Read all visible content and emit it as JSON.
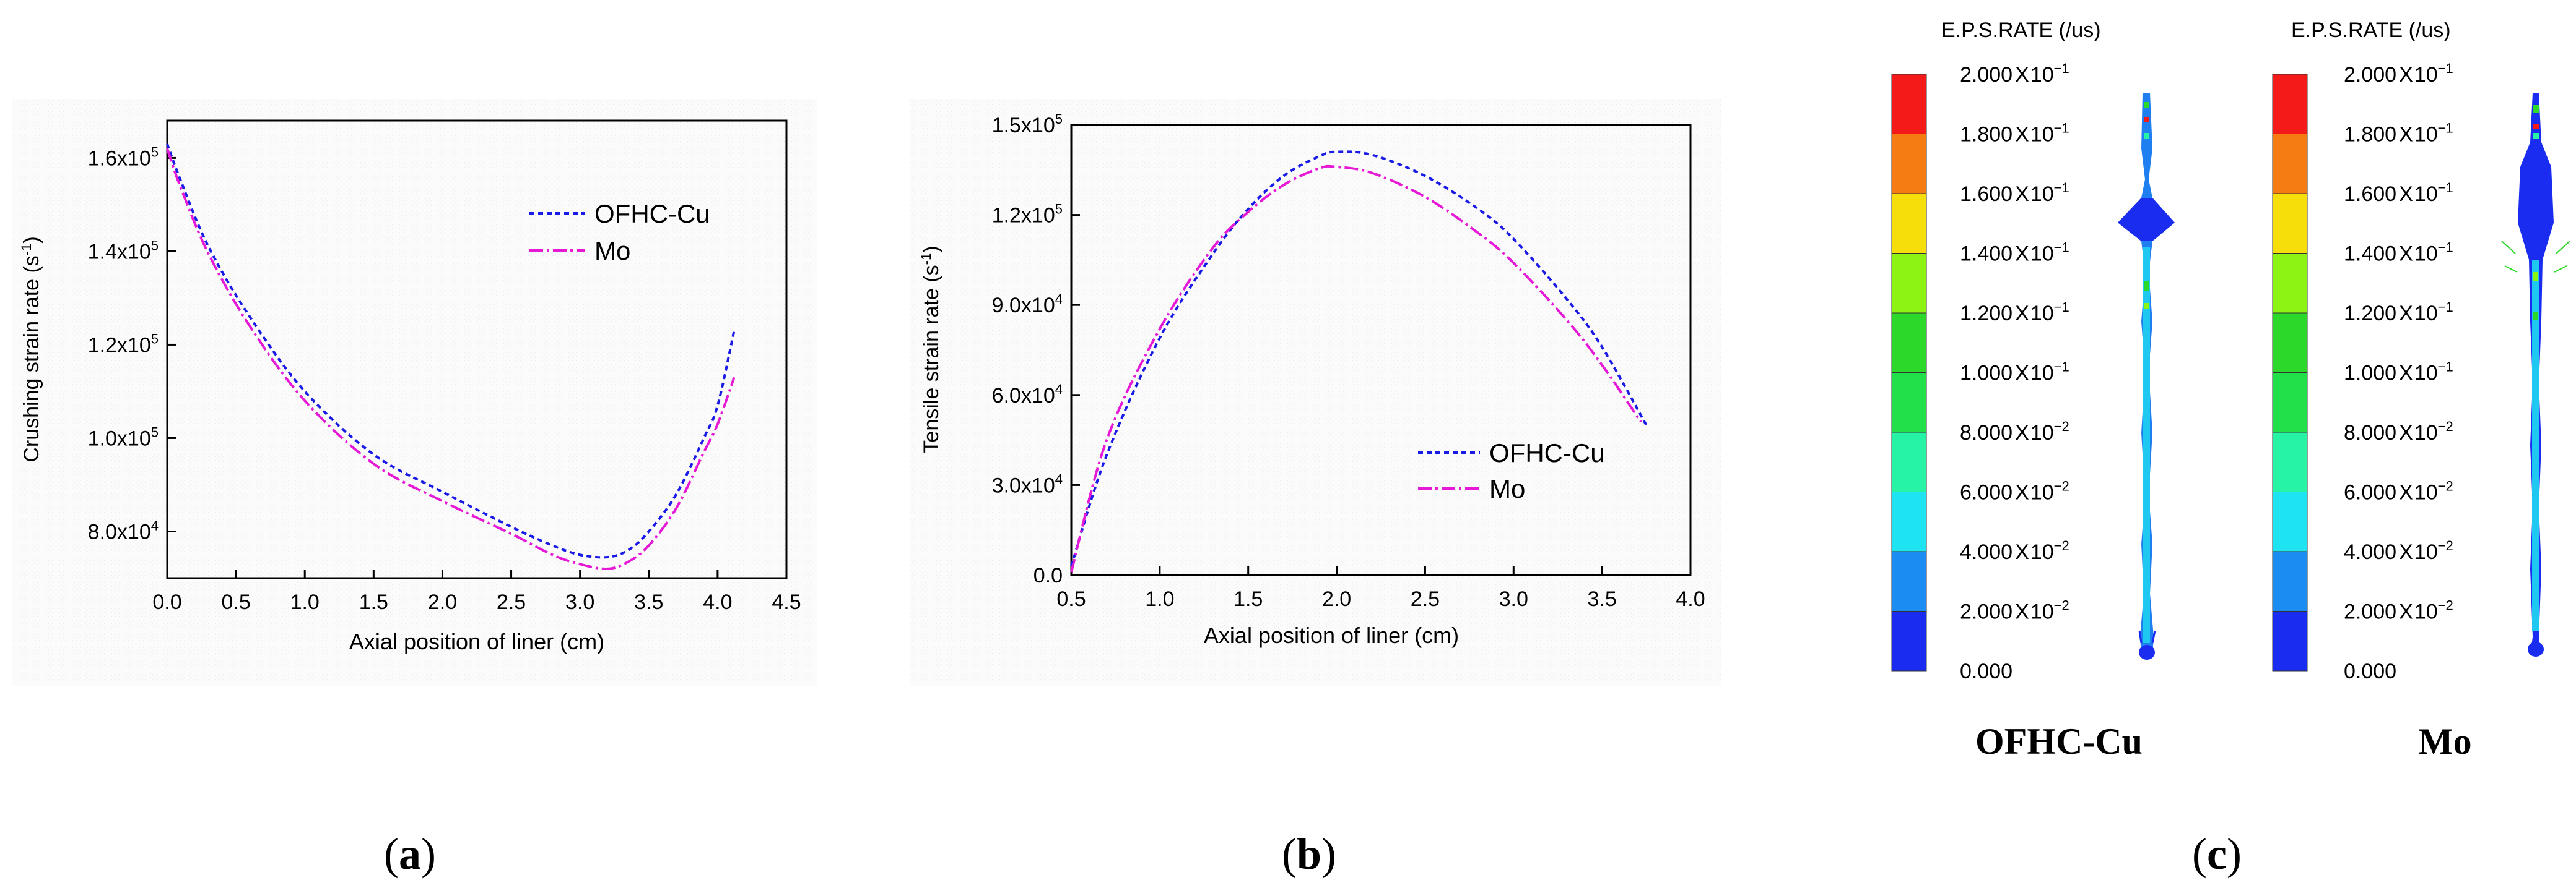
{
  "panels": {
    "a": {
      "caption_open": "(",
      "caption_letter": "a",
      "caption_close": ")"
    },
    "b": {
      "caption_open": "(",
      "caption_letter": "b",
      "caption_close": ")"
    },
    "c": {
      "caption_open": "(",
      "caption_letter": "c",
      "caption_close": ")"
    }
  },
  "contour": {
    "header": "E.P.S.RATE (/us)",
    "levels": [
      {
        "mantissa": "2.000",
        "times": "X",
        "base": "10",
        "exp": "−1",
        "color": "#f41a1a"
      },
      {
        "mantissa": "1.800",
        "times": "X",
        "base": "10",
        "exp": "−1",
        "color": "#f47c12"
      },
      {
        "mantissa": "1.600",
        "times": "X",
        "base": "10",
        "exp": "−1",
        "color": "#f5de0a"
      },
      {
        "mantissa": "1.400",
        "times": "X",
        "base": "10",
        "exp": "−1",
        "color": "#8cf312"
      },
      {
        "mantissa": "1.200",
        "times": "X",
        "base": "10",
        "exp": "−1",
        "color": "#2cd92a"
      },
      {
        "mantissa": "1.000",
        "times": "X",
        "base": "10",
        "exp": "−1",
        "color": "#22e04a"
      },
      {
        "mantissa": "8.000",
        "times": "X",
        "base": "10",
        "exp": "−2",
        "color": "#27f3a4"
      },
      {
        "mantissa": "6.000",
        "times": "X",
        "base": "10",
        "exp": "−2",
        "color": "#1ee3f0"
      },
      {
        "mantissa": "4.000",
        "times": "X",
        "base": "10",
        "exp": "−2",
        "color": "#1b8cf2"
      },
      {
        "mantissa": "2.000",
        "times": "X",
        "base": "10",
        "exp": "−2",
        "color": "#1a2cf0"
      },
      {
        "mantissa": "0.000",
        "times": "",
        "base": "",
        "exp": "",
        "color": ""
      }
    ],
    "materials": [
      "OFHC-Cu",
      "Mo"
    ]
  },
  "chart_data": [
    {
      "id": "a",
      "type": "line",
      "xlabel": "Axial position of liner (cm)",
      "ylabel": "Crushing strain rate (s",
      "ylabel_sup": "-1",
      "ylabel_close": ")",
      "xlim": [
        0.0,
        4.5
      ],
      "ylim": [
        70000,
        168000
      ],
      "xticks": [
        "0.0",
        "0.5",
        "1.0",
        "1.5",
        "2.0",
        "2.5",
        "3.0",
        "3.5",
        "4.0",
        "4.5"
      ],
      "yticks": [
        {
          "value": 80000,
          "mant": "8.0x10",
          "exp": "4"
        },
        {
          "value": 100000,
          "mant": "1.0x10",
          "exp": "5"
        },
        {
          "value": 120000,
          "mant": "1.2x10",
          "exp": "5"
        },
        {
          "value": 140000,
          "mant": "1.4x10",
          "exp": "5"
        },
        {
          "value": 160000,
          "mant": "1.6x10",
          "exp": "5"
        }
      ],
      "legend_position": "top-right",
      "series": [
        {
          "name": "OFHC-Cu",
          "color": "#1a1ae6",
          "dash": "dot",
          "x": [
            0.0,
            0.1,
            0.3,
            0.6,
            1.0,
            1.5,
            2.0,
            2.5,
            2.8,
            3.0,
            3.2,
            3.35,
            3.5,
            3.7,
            3.9,
            4.0,
            4.12
          ],
          "y": [
            163000,
            155000,
            141000,
            126000,
            110000,
            96500,
            88500,
            81000,
            77000,
            75000,
            74500,
            76000,
            80000,
            88000,
            100000,
            107000,
            123000
          ]
        },
        {
          "name": "Mo",
          "color": "#e61ad6",
          "dash": "dashdot",
          "x": [
            0.0,
            0.1,
            0.3,
            0.6,
            1.0,
            1.5,
            2.0,
            2.5,
            2.8,
            3.0,
            3.2,
            3.35,
            3.5,
            3.7,
            3.9,
            4.0,
            4.12
          ],
          "y": [
            162000,
            153500,
            139500,
            124000,
            108000,
            94500,
            86500,
            79500,
            75000,
            73000,
            72000,
            73500,
            77000,
            85000,
            97000,
            103000,
            113000
          ]
        }
      ]
    },
    {
      "id": "b",
      "type": "line",
      "xlabel": "Axial position of liner (cm)",
      "ylabel": "Tensile strain rate (s",
      "ylabel_sup": "-1",
      "ylabel_close": ")",
      "xlim": [
        0.5,
        4.0
      ],
      "ylim": [
        0,
        150000
      ],
      "xticks": [
        "0.5",
        "1.0",
        "1.5",
        "2.0",
        "2.5",
        "3.0",
        "3.5",
        "4.0"
      ],
      "yticks": [
        {
          "value": 0,
          "mant": "0.0",
          "exp": ""
        },
        {
          "value": 30000,
          "mant": "3.0x10",
          "exp": "4"
        },
        {
          "value": 60000,
          "mant": "6.0x10",
          "exp": "4"
        },
        {
          "value": 90000,
          "mant": "9.0x10",
          "exp": "4"
        },
        {
          "value": 120000,
          "mant": "1.2x10",
          "exp": "5"
        },
        {
          "value": 150000,
          "mant": "1.5x10",
          "exp": "5"
        }
      ],
      "legend_position": "lower-right",
      "series": [
        {
          "name": "OFHC-Cu",
          "color": "#1a1ae6",
          "dash": "dot",
          "x": [
            0.5,
            0.7,
            1.0,
            1.3,
            1.5,
            1.7,
            1.9,
            2.0,
            2.2,
            2.5,
            2.8,
            3.0,
            3.3,
            3.5,
            3.75
          ],
          "y": [
            3000,
            40000,
            79000,
            107000,
            122000,
            133000,
            139500,
            141000,
            140000,
            133000,
            122000,
            112000,
            92000,
            76000,
            50000
          ]
        },
        {
          "name": "Mo",
          "color": "#e61ad6",
          "dash": "dashdot",
          "x": [
            0.5,
            0.7,
            1.0,
            1.3,
            1.5,
            1.7,
            1.9,
            2.0,
            2.2,
            2.5,
            2.8,
            3.0,
            3.3,
            3.5,
            3.72
          ],
          "y": [
            1000,
            45000,
            82000,
            109000,
            121000,
            130000,
            135500,
            136000,
            134000,
            126000,
            114000,
            104000,
            85000,
            70000,
            51000
          ]
        }
      ]
    }
  ]
}
